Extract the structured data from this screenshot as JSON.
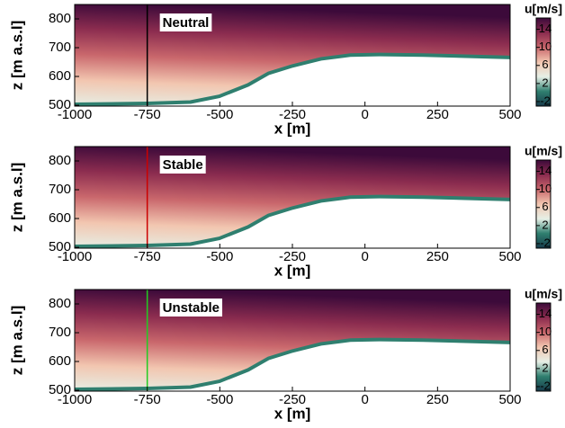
{
  "chart_data": [
    {
      "type": "field",
      "annotation": "Neutral",
      "annotation_color": "#000000",
      "vline": -750,
      "xlabel": "x [m]",
      "ylabel": "z [m a.s.l]",
      "colorbar_label": "u[m/s]",
      "xlim": [
        -1000,
        500
      ],
      "xticks": [
        -1000,
        -750,
        -500,
        -250,
        0,
        250,
        500
      ],
      "ylim": [
        497,
        850
      ],
      "yticks": [
        500,
        600,
        700,
        800
      ],
      "clim": [
        -3,
        16.5
      ],
      "cticks": [
        -2,
        2,
        6,
        10,
        14
      ],
      "colormap": [
        "#173a4a",
        "#2f7f6f",
        "#e6efe6",
        "#f2c6b0",
        "#c9676c",
        "#8b2c4f",
        "#3c0a3a"
      ],
      "terrain": {
        "x": [
          -1000,
          -750,
          -600,
          -500,
          -400,
          -330,
          -250,
          -150,
          -50,
          50,
          200,
          500
        ],
        "z": [
          497,
          500,
          505,
          525,
          565,
          605,
          630,
          655,
          668,
          670,
          668,
          660
        ]
      }
    },
    {
      "type": "field",
      "annotation": "Stable",
      "annotation_color": "#cc0000",
      "vline": -750,
      "xlabel": "x [m]",
      "ylabel": "z [m a.s.l]",
      "colorbar_label": "u[m/s]",
      "xlim": [
        -1000,
        500
      ],
      "xticks": [
        -1000,
        -750,
        -500,
        -250,
        0,
        250,
        500
      ],
      "ylim": [
        497,
        850
      ],
      "yticks": [
        500,
        600,
        700,
        800
      ],
      "clim": [
        -3,
        16.5
      ],
      "cticks": [
        -2,
        2,
        6,
        10,
        14
      ],
      "colormap": [
        "#173a4a",
        "#2f7f6f",
        "#e6efe6",
        "#f2c6b0",
        "#c9676c",
        "#8b2c4f",
        "#3c0a3a"
      ],
      "terrain": {
        "x": [
          -1000,
          -750,
          -600,
          -500,
          -400,
          -330,
          -250,
          -150,
          -50,
          50,
          200,
          500
        ],
        "z": [
          497,
          500,
          505,
          525,
          565,
          605,
          630,
          655,
          668,
          670,
          668,
          660
        ]
      }
    },
    {
      "type": "field",
      "annotation": "Unstable",
      "annotation_color": "#22cc22",
      "vline": -750,
      "xlabel": "x [m]",
      "ylabel": "z [m a.s.l]",
      "colorbar_label": "u[m/s]",
      "xlim": [
        -1000,
        500
      ],
      "xticks": [
        -1000,
        -750,
        -500,
        -250,
        0,
        250,
        500
      ],
      "ylim": [
        497,
        850
      ],
      "yticks": [
        500,
        600,
        700,
        800
      ],
      "clim": [
        -3,
        16.5
      ],
      "cticks": [
        -2,
        2,
        6,
        10,
        14
      ],
      "colormap": [
        "#173a4a",
        "#2f7f6f",
        "#e6efe6",
        "#f2c6b0",
        "#c9676c",
        "#8b2c4f",
        "#3c0a3a"
      ],
      "terrain": {
        "x": [
          -1000,
          -750,
          -600,
          -500,
          -400,
          -330,
          -250,
          -150,
          -50,
          50,
          200,
          500
        ],
        "z": [
          497,
          500,
          505,
          525,
          565,
          605,
          630,
          655,
          668,
          670,
          668,
          660
        ]
      }
    }
  ]
}
